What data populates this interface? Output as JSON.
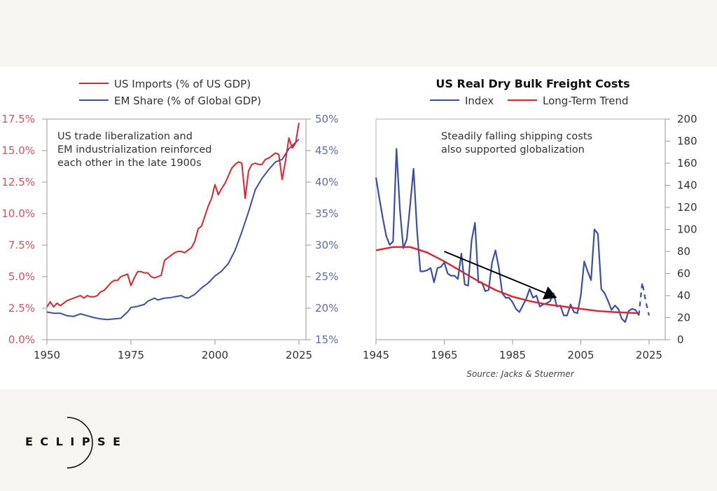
{
  "brand": {
    "logo_text": "ECLIPSE"
  },
  "chart_data": [
    {
      "type": "line",
      "title": "",
      "legend": [
        "US Imports (% of US GDP)",
        "EM Share (% of Global GDP)"
      ],
      "legend_placement": "top",
      "annotation": [
        "US trade liberalization and",
        "EM industrialization reinforced",
        "each other in the late 1900s"
      ],
      "xlabel": "",
      "ylabel": "",
      "y2label": "",
      "xlim": [
        1950,
        2027
      ],
      "x_ticks": [
        "1950",
        "1975",
        "2000",
        "2025"
      ],
      "ylim": [
        0,
        17.5
      ],
      "y_ticks": [
        "0.0%",
        "2.5%",
        "5.0%",
        "7.5%",
        "10.0%",
        "12.5%",
        "15.0%",
        "17.5%"
      ],
      "y2lim": [
        15,
        50
      ],
      "y2_ticks": [
        "15%",
        "20%",
        "25%",
        "30%",
        "35%",
        "40%",
        "45%",
        "50%"
      ],
      "grid": false,
      "colors": {
        "imports": "#e8202a",
        "em": "#3a4fa8",
        "left_axis_text": "#e0505a",
        "right_axis_text": "#5c6bb8"
      },
      "series": [
        {
          "name": "US Imports (% of US GDP)",
          "axis": "left",
          "x": [
            1950,
            1951,
            1952,
            1953,
            1954,
            1955,
            1956,
            1957,
            1958,
            1959,
            1960,
            1961,
            1962,
            1963,
            1964,
            1965,
            1966,
            1967,
            1968,
            1969,
            1970,
            1971,
            1972,
            1973,
            1974,
            1975,
            1976,
            1977,
            1978,
            1979,
            1980,
            1981,
            1982,
            1983,
            1984,
            1985,
            1986,
            1987,
            1988,
            1989,
            1990,
            1991,
            1992,
            1993,
            1994,
            1995,
            1996,
            1997,
            1998,
            1999,
            2000,
            2001,
            2002,
            2003,
            2004,
            2005,
            2006,
            2007,
            2008,
            2009,
            2010,
            2011,
            2012,
            2013,
            2014,
            2015,
            2016,
            2017,
            2018,
            2019,
            2020,
            2021,
            2022,
            2023,
            2024,
            2025
          ],
          "values": [
            2.6,
            3.0,
            2.6,
            2.9,
            2.7,
            2.9,
            3.1,
            3.2,
            3.3,
            3.4,
            3.5,
            3.3,
            3.5,
            3.4,
            3.4,
            3.5,
            3.8,
            3.9,
            4.2,
            4.5,
            4.7,
            4.7,
            5.0,
            5.1,
            5.2,
            4.3,
            4.9,
            5.4,
            5.4,
            5.3,
            5.3,
            5.0,
            4.9,
            5.0,
            5.1,
            6.3,
            6.5,
            6.7,
            6.9,
            7.0,
            7.0,
            6.9,
            7.1,
            7.3,
            7.8,
            8.8,
            9.0,
            9.8,
            10.6,
            11.2,
            12.3,
            11.5,
            12.0,
            12.4,
            13.0,
            13.6,
            13.9,
            14.1,
            14.0,
            11.2,
            13.4,
            13.9,
            14.0,
            13.9,
            13.9,
            14.3,
            14.4,
            14.6,
            14.8,
            14.7,
            12.7,
            14.2,
            16.0,
            15.2,
            15.6,
            17.2
          ]
        },
        {
          "name": "EM Share (% of Global GDP)",
          "axis": "right",
          "x": [
            1950,
            1952,
            1954,
            1956,
            1958,
            1960,
            1962,
            1964,
            1966,
            1968,
            1970,
            1972,
            1974,
            1975,
            1977,
            1979,
            1980,
            1982,
            1983,
            1985,
            1987,
            1989,
            1990,
            1991,
            1992,
            1994,
            1996,
            1998,
            2000,
            2002,
            2004,
            2006,
            2008,
            2010,
            2012,
            2014,
            2016,
            2018,
            2020,
            2022,
            2024,
            2025
          ],
          "values": [
            19.4,
            19.2,
            19.2,
            18.8,
            18.7,
            19.1,
            18.8,
            18.5,
            18.3,
            18.2,
            18.3,
            18.4,
            19.4,
            20.1,
            20.3,
            20.6,
            21.1,
            21.6,
            21.3,
            21.6,
            21.7,
            21.9,
            22.0,
            21.7,
            21.6,
            22.2,
            23.2,
            24.0,
            25.1,
            25.9,
            27.1,
            29.2,
            32.1,
            35.3,
            38.8,
            40.6,
            42.0,
            43.2,
            43.6,
            45.3,
            46.3,
            46.8
          ]
        }
      ]
    },
    {
      "type": "line",
      "title": "US Real Dry Bulk Freight Costs",
      "legend": [
        "Index",
        "Long-Term Trend"
      ],
      "legend_placement": "top",
      "annotation": [
        "Steadily falling shipping costs",
        "also supported globalization"
      ],
      "source": "Source: Jacks & Stuermer",
      "xlabel": "",
      "ylabel": "",
      "xlim": [
        1945,
        2030
      ],
      "x_ticks": [
        "1945",
        "1965",
        "1985",
        "2005",
        "2025"
      ],
      "ylim": [
        0,
        200
      ],
      "y_ticks": [
        "0",
        "20",
        "40",
        "60",
        "80",
        "100",
        "120",
        "140",
        "160",
        "180",
        "200"
      ],
      "y_axis_side": "right",
      "grid": false,
      "colors": {
        "index": "#3a4fa8",
        "trend": "#e8202a",
        "arrow": "#000000"
      },
      "trend_arrow": {
        "from": [
          1965,
          80
        ],
        "to": [
          1998,
          38
        ]
      },
      "series": [
        {
          "name": "Index",
          "x": [
            1945,
            1946,
            1947,
            1948,
            1949,
            1950,
            1951,
            1952,
            1953,
            1954,
            1955,
            1956,
            1957,
            1958,
            1959,
            1960,
            1961,
            1962,
            1963,
            1964,
            1965,
            1966,
            1967,
            1968,
            1969,
            1970,
            1971,
            1972,
            1973,
            1974,
            1975,
            1976,
            1977,
            1978,
            1979,
            1980,
            1981,
            1982,
            1983,
            1984,
            1985,
            1986,
            1987,
            1988,
            1989,
            1990,
            1991,
            1992,
            1993,
            1994,
            1995,
            1996,
            1997,
            1998,
            1999,
            2000,
            2001,
            2002,
            2003,
            2004,
            2005,
            2006,
            2007,
            2008,
            2009,
            2010,
            2011,
            2012,
            2013,
            2014,
            2015,
            2016,
            2017,
            2018,
            2019,
            2020,
            2021,
            2022
          ],
          "values": [
            147,
            128,
            110,
            94,
            86,
            89,
            173,
            118,
            83,
            91,
            122,
            155,
            100,
            62,
            62,
            63,
            65,
            52,
            65,
            66,
            70,
            60,
            58,
            58,
            55,
            78,
            50,
            49,
            90,
            106,
            52,
            52,
            44,
            45,
            70,
            81,
            65,
            42,
            38,
            38,
            34,
            28,
            25,
            31,
            37,
            46,
            38,
            40,
            30,
            32,
            33,
            35,
            42,
            30,
            31,
            22,
            22,
            32,
            25,
            24,
            40,
            71,
            62,
            54,
            100,
            96,
            46,
            42,
            35,
            27,
            31,
            28,
            19,
            16,
            26,
            28,
            27,
            22
          ]
        },
        {
          "name": "Index (preliminary)",
          "style": "dashed",
          "x": [
            2022,
            2023,
            2024,
            2025
          ],
          "values": [
            22,
            52,
            35,
            22
          ]
        },
        {
          "name": "Long-Term Trend",
          "x": [
            1945,
            1950,
            1955,
            1960,
            1965,
            1970,
            1975,
            1980,
            1985,
            1990,
            1995,
            2000,
            2005,
            2010,
            2015,
            2022
          ],
          "values": [
            81,
            84,
            84,
            79,
            71,
            62,
            53,
            45,
            39,
            35,
            32,
            30,
            28,
            26,
            25,
            24
          ]
        }
      ]
    }
  ]
}
